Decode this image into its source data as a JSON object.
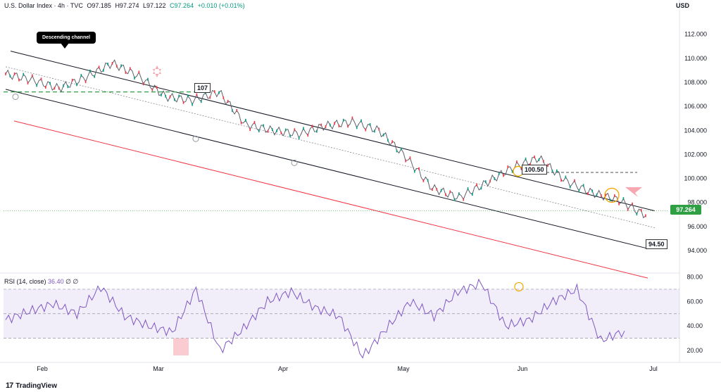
{
  "header": {
    "symbol": "U.S. Dollar Index · 4h · TVC",
    "open": "O97.185",
    "high": "H97.274",
    "low": "L97.122",
    "close": "C97.264",
    "change": "+0.010 (+0.01%)"
  },
  "currency": "USD",
  "price_tag": "97.264",
  "annotations": {
    "callout": "Descending channel",
    "level_107": "107",
    "level_100_50": "100.50",
    "level_94_50": "94.50"
  },
  "rsi_header": {
    "label": "RSI (14, close)",
    "value": "36.40",
    "extra": "∅ ∅"
  },
  "brand": {
    "logo": "17",
    "name": "TradingView"
  },
  "colors": {
    "up": "#089981",
    "down": "#f23645",
    "rsi": "#7e57c2",
    "channel": "#131722",
    "lower_red": "#f23645",
    "support_green": "#2ea043"
  },
  "chart_data": [
    {
      "type": "line",
      "title": "U.S. Dollar Index · 4h · TVC",
      "x_ticks": [
        "Feb",
        "Mar",
        "Apr",
        "May",
        "Jun",
        "Jul"
      ],
      "y_ticks": [
        "94.000",
        "96.000",
        "98.000",
        "100.000",
        "102.000",
        "104.000",
        "106.000",
        "108.000",
        "110.000",
        "112.000"
      ],
      "ylim": [
        92.3,
        113.8
      ],
      "x": [
        "Jan-10",
        "Jan-17",
        "Jan-24",
        "Jan-31",
        "Feb-07",
        "Feb-14",
        "Feb-21",
        "Feb-28",
        "Mar-07",
        "Mar-14",
        "Mar-21",
        "Mar-28",
        "Apr-04",
        "Apr-11",
        "Apr-18",
        "Apr-25",
        "May-02",
        "May-09",
        "May-16",
        "May-23",
        "May-30",
        "Jun-06",
        "Jun-13",
        "Jun-20",
        "Jun-27"
      ],
      "series": [
        {
          "values": [
            108.7,
            108.2,
            107.5,
            108.4,
            109.6,
            108.5,
            106.8,
            106.5,
            107.2,
            104.5,
            104.0,
            103.7,
            104.4,
            104.7,
            104.0,
            101.8,
            99.2,
            98.4,
            99.6,
            100.9,
            101.7,
            99.8,
            98.8,
            98.2,
            96.9
          ]
        }
      ],
      "levels": [
        107,
        100.5,
        94.5
      ]
    },
    {
      "type": "line",
      "title": "RSI (14, close)",
      "y_ticks": [
        "20.00",
        "40.00",
        "60.00",
        "80.00"
      ],
      "ylim": [
        12,
        82
      ],
      "bands": [
        30,
        70
      ],
      "series": [
        {
          "values": [
            45,
            52,
            58,
            50,
            72,
            48,
            40,
            35,
            70,
            20,
            38,
            60,
            68,
            55,
            48,
            15,
            38,
            60,
            48,
            68,
            75,
            40,
            45,
            60,
            70,
            28,
            36
          ]
        }
      ]
    }
  ]
}
